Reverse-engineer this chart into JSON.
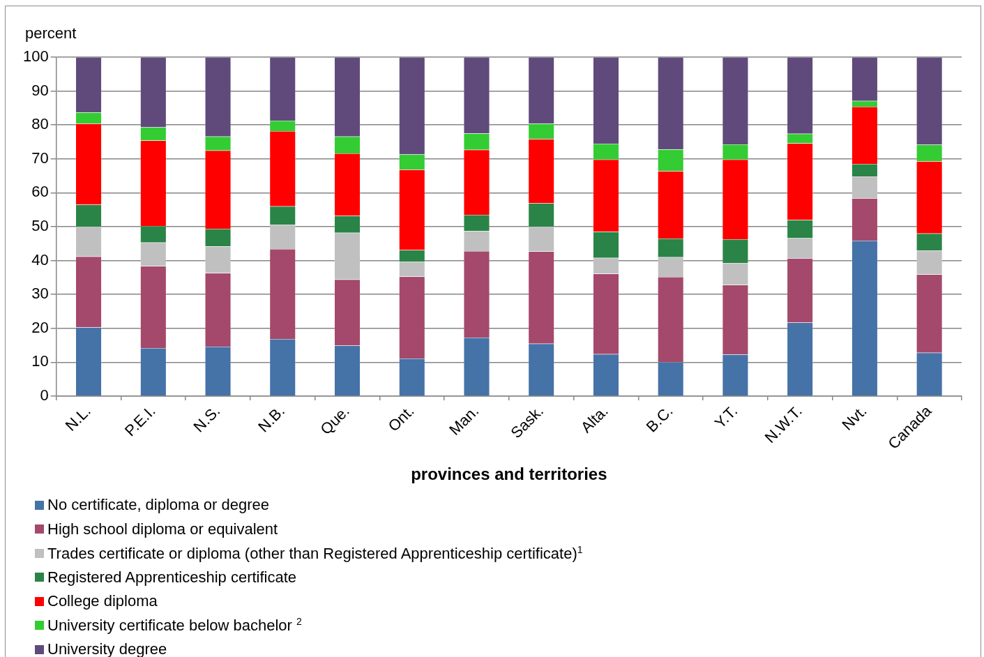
{
  "chart_data": {
    "type": "bar",
    "stacked": true,
    "ylabel": "percent",
    "xlabel": "provinces and territories",
    "categories": [
      "N.L.",
      "P.E.I.",
      "N.S.",
      "N.B.",
      "Que.",
      "Ont.",
      "Man.",
      "Sask.",
      "Alta.",
      "B.C.",
      "Y.T.",
      "N.W.T.",
      "Nvt.",
      "Canada"
    ],
    "series": [
      {
        "name": "No certificate, diploma or degree",
        "color": "#4572a7",
        "values": [
          20.3,
          14.2,
          14.6,
          16.9,
          14.9,
          11.1,
          17.3,
          15.5,
          12.4,
          10.1,
          12.3,
          21.7,
          45.9,
          12.8
        ]
      },
      {
        "name": "High school diploma or equivalent",
        "color": "#a4496b",
        "values": [
          20.9,
          24.2,
          21.7,
          26.5,
          19.5,
          24.2,
          25.5,
          27.2,
          23.7,
          25.1,
          20.5,
          19.0,
          12.5,
          23.1
        ]
      },
      {
        "name": "Trades certificate or diploma (other than Registered Apprenticeship certificate)$^{1}$",
        "color": "#c0c0c0",
        "values": [
          8.8,
          6.9,
          7.9,
          7.1,
          13.8,
          4.4,
          5.9,
          7.3,
          4.7,
          5.8,
          6.5,
          5.9,
          6.4,
          7.1
        ]
      },
      {
        "name": "Registered Apprenticeship certificate",
        "color": "#2a8447",
        "values": [
          6.5,
          4.9,
          5.2,
          5.5,
          5.0,
          3.4,
          4.8,
          6.9,
          7.7,
          5.5,
          7.0,
          5.4,
          3.7,
          5.0
        ]
      },
      {
        "name": "College diploma",
        "color": "#ff0000",
        "values": [
          23.9,
          25.2,
          23.1,
          22.2,
          18.4,
          23.7,
          19.2,
          19.0,
          21.3,
          19.9,
          23.5,
          22.6,
          16.9,
          21.3
        ]
      },
      {
        "name": "University certificate below bachelor $^{2}$",
        "color": "#33cc33",
        "values": [
          3.3,
          3.9,
          4.1,
          3.1,
          5.0,
          4.5,
          4.8,
          4.5,
          4.7,
          6.4,
          4.5,
          2.8,
          1.7,
          4.9
        ]
      },
      {
        "name": "University degree",
        "color": "#604a7b",
        "values": [
          16.3,
          20.7,
          23.4,
          18.7,
          23.4,
          28.7,
          22.5,
          19.6,
          25.5,
          27.2,
          25.7,
          22.6,
          12.9,
          25.8
        ]
      }
    ],
    "ylim": [
      0,
      100
    ],
    "yticks": [
      0,
      10,
      20,
      30,
      40,
      50,
      60,
      70,
      80,
      90,
      100
    ],
    "grid": "y",
    "legend": "bottom"
  }
}
